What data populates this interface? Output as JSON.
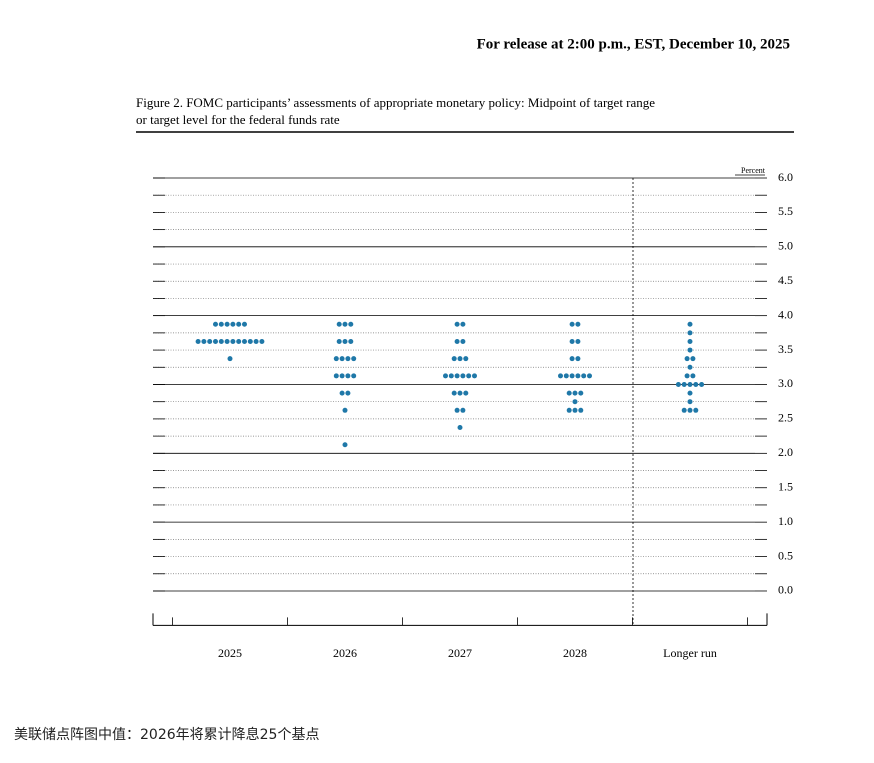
{
  "header": "For release at 2:00 p.m., EST, December 10, 2025",
  "chart_data": {
    "type": "dot",
    "title_lines": [
      "Figure 2. FOMC participants’ assessments of appropriate monetary policy: Midpoint of target range",
      "or target level for the federal funds rate"
    ],
    "y_unit": "Percent",
    "categories": [
      "2025",
      "2026",
      "2027",
      "2028",
      "Longer run"
    ],
    "color": "#1f78a8",
    "dots": [
      [
        {
          "rate": 3.875,
          "count": 6
        },
        {
          "rate": 3.625,
          "count": 12
        },
        {
          "rate": 3.375,
          "count": 1
        }
      ],
      [
        {
          "rate": 3.875,
          "count": 3
        },
        {
          "rate": 3.625,
          "count": 3
        },
        {
          "rate": 3.375,
          "count": 4
        },
        {
          "rate": 3.125,
          "count": 4
        },
        {
          "rate": 2.875,
          "count": 2
        },
        {
          "rate": 2.625,
          "count": 1
        },
        {
          "rate": 2.125,
          "count": 1
        }
      ],
      [
        {
          "rate": 3.875,
          "count": 2
        },
        {
          "rate": 3.625,
          "count": 2
        },
        {
          "rate": 3.375,
          "count": 3
        },
        {
          "rate": 3.125,
          "count": 6
        },
        {
          "rate": 2.875,
          "count": 3
        },
        {
          "rate": 2.625,
          "count": 2
        },
        {
          "rate": 2.375,
          "count": 1
        }
      ],
      [
        {
          "rate": 3.875,
          "count": 2
        },
        {
          "rate": 3.625,
          "count": 2
        },
        {
          "rate": 3.375,
          "count": 2
        },
        {
          "rate": 3.125,
          "count": 6
        },
        {
          "rate": 2.875,
          "count": 3
        },
        {
          "rate": 2.75,
          "count": 1
        },
        {
          "rate": 2.625,
          "count": 3
        }
      ],
      [
        {
          "rate": 3.875,
          "count": 1
        },
        {
          "rate": 3.75,
          "count": 1
        },
        {
          "rate": 3.625,
          "count": 1
        },
        {
          "rate": 3.5,
          "count": 1
        },
        {
          "rate": 3.375,
          "count": 2
        },
        {
          "rate": 3.25,
          "count": 1
        },
        {
          "rate": 3.125,
          "count": 2
        },
        {
          "rate": 3.0,
          "count": 5
        },
        {
          "rate": 2.875,
          "count": 1
        },
        {
          "rate": 2.75,
          "count": 1
        },
        {
          "rate": 2.625,
          "count": 3
        }
      ]
    ],
    "ylim": [
      -0.5,
      6
    ],
    "yticks": [
      {
        "value": 0,
        "label": "0.0"
      },
      {
        "value": 0.5,
        "label": "0.5"
      },
      {
        "value": 1,
        "label": "1.0"
      },
      {
        "value": 1.5,
        "label": "1.5"
      },
      {
        "value": 2,
        "label": "2.0"
      },
      {
        "value": 2.5,
        "label": "2.5"
      },
      {
        "value": 3,
        "label": "3.0"
      },
      {
        "value": 3.5,
        "label": "3.5"
      },
      {
        "value": 4,
        "label": "4.0"
      },
      {
        "value": 4.5,
        "label": "4.5"
      },
      {
        "value": 5,
        "label": "5.0"
      },
      {
        "value": 5.5,
        "label": "5.5"
      },
      {
        "value": 6,
        "label": "6.0"
      }
    ],
    "grid": true
  },
  "caption": "美联储点阵图中值：2026年将累计降息25个基点"
}
